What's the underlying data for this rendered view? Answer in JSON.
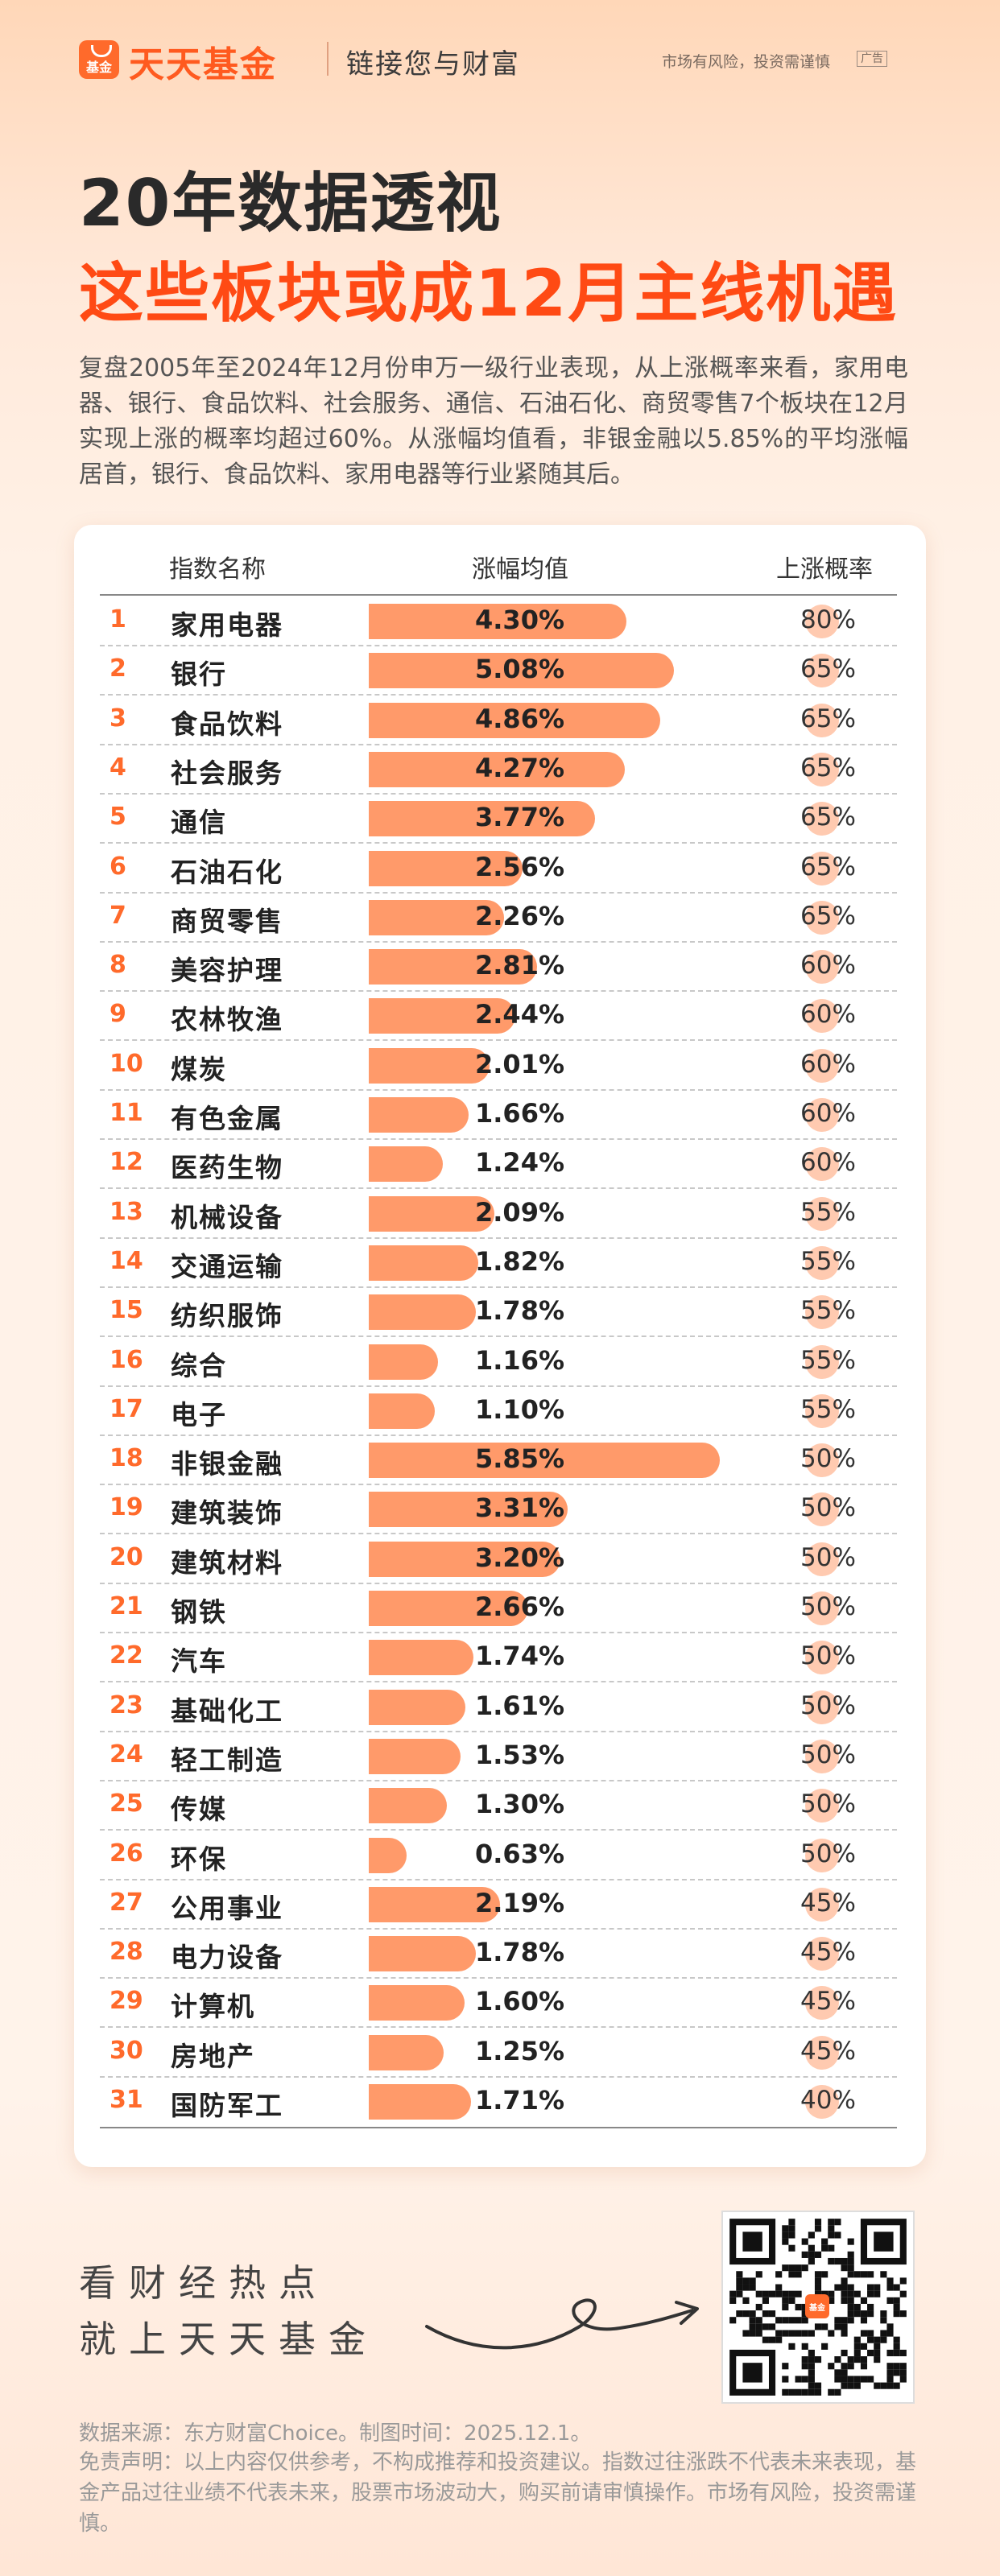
{
  "header": {
    "logo_text": "基金",
    "brand": "天天基金",
    "slogan": "链接您与财富",
    "risk_notice": "市场有风险，投资需谨慎",
    "ad_badge": "广告"
  },
  "title_line1": "20年数据透视",
  "title_line2": "这些板块或成12月主线机遇",
  "intro": "复盘2005年至2024年12月份申万一级行业表现，从上涨概率来看，家用电器、银行、食品饮料、社会服务、通信、石油石化、商贸零售7个板块在12月实现上涨的概率均超过60%。从涨幅均值看，非银金融以5.85%的平均涨幅居首，银行、食品饮料、家用电器等行业紧随其后。",
  "chart_data": {
    "type": "table",
    "columns": [
      "指数名称",
      "涨幅均值",
      "上涨概率"
    ],
    "rows": [
      {
        "rank": "1",
        "name": "家用电器",
        "avg": "4.30%",
        "avg_value": 4.3,
        "prob": "80%",
        "prob_value": 80
      },
      {
        "rank": "2",
        "name": "银行",
        "avg": "5.08%",
        "avg_value": 5.08,
        "prob": "65%",
        "prob_value": 65
      },
      {
        "rank": "3",
        "name": "食品饮料",
        "avg": "4.86%",
        "avg_value": 4.86,
        "prob": "65%",
        "prob_value": 65
      },
      {
        "rank": "4",
        "name": "社会服务",
        "avg": "4.27%",
        "avg_value": 4.27,
        "prob": "65%",
        "prob_value": 65
      },
      {
        "rank": "5",
        "name": "通信",
        "avg": "3.77%",
        "avg_value": 3.77,
        "prob": "65%",
        "prob_value": 65
      },
      {
        "rank": "6",
        "name": "石油石化",
        "avg": "2.56%",
        "avg_value": 2.56,
        "prob": "65%",
        "prob_value": 65
      },
      {
        "rank": "7",
        "name": "商贸零售",
        "avg": "2.26%",
        "avg_value": 2.26,
        "prob": "65%",
        "prob_value": 65
      },
      {
        "rank": "8",
        "name": "美容护理",
        "avg": "2.81%",
        "avg_value": 2.81,
        "prob": "60%",
        "prob_value": 60
      },
      {
        "rank": "9",
        "name": "农林牧渔",
        "avg": "2.44%",
        "avg_value": 2.44,
        "prob": "60%",
        "prob_value": 60
      },
      {
        "rank": "10",
        "name": "煤炭",
        "avg": "2.01%",
        "avg_value": 2.01,
        "prob": "60%",
        "prob_value": 60
      },
      {
        "rank": "11",
        "name": "有色金属",
        "avg": "1.66%",
        "avg_value": 1.66,
        "prob": "60%",
        "prob_value": 60
      },
      {
        "rank": "12",
        "name": "医药生物",
        "avg": "1.24%",
        "avg_value": 1.24,
        "prob": "60%",
        "prob_value": 60
      },
      {
        "rank": "13",
        "name": "机械设备",
        "avg": "2.09%",
        "avg_value": 2.09,
        "prob": "55%",
        "prob_value": 55
      },
      {
        "rank": "14",
        "name": "交通运输",
        "avg": "1.82%",
        "avg_value": 1.82,
        "prob": "55%",
        "prob_value": 55
      },
      {
        "rank": "15",
        "name": "纺织服饰",
        "avg": "1.78%",
        "avg_value": 1.78,
        "prob": "55%",
        "prob_value": 55
      },
      {
        "rank": "16",
        "name": "综合",
        "avg": "1.16%",
        "avg_value": 1.16,
        "prob": "55%",
        "prob_value": 55
      },
      {
        "rank": "17",
        "name": "电子",
        "avg": "1.10%",
        "avg_value": 1.1,
        "prob": "55%",
        "prob_value": 55
      },
      {
        "rank": "18",
        "name": "非银金融",
        "avg": "5.85%",
        "avg_value": 5.85,
        "prob": "50%",
        "prob_value": 50
      },
      {
        "rank": "19",
        "name": "建筑装饰",
        "avg": "3.31%",
        "avg_value": 3.31,
        "prob": "50%",
        "prob_value": 50
      },
      {
        "rank": "20",
        "name": "建筑材料",
        "avg": "3.20%",
        "avg_value": 3.2,
        "prob": "50%",
        "prob_value": 50
      },
      {
        "rank": "21",
        "name": "钢铁",
        "avg": "2.66%",
        "avg_value": 2.66,
        "prob": "50%",
        "prob_value": 50
      },
      {
        "rank": "22",
        "name": "汽车",
        "avg": "1.74%",
        "avg_value": 1.74,
        "prob": "50%",
        "prob_value": 50
      },
      {
        "rank": "23",
        "name": "基础化工",
        "avg": "1.61%",
        "avg_value": 1.61,
        "prob": "50%",
        "prob_value": 50
      },
      {
        "rank": "24",
        "name": "轻工制造",
        "avg": "1.53%",
        "avg_value": 1.53,
        "prob": "50%",
        "prob_value": 50
      },
      {
        "rank": "25",
        "name": "传媒",
        "avg": "1.30%",
        "avg_value": 1.3,
        "prob": "50%",
        "prob_value": 50
      },
      {
        "rank": "26",
        "name": "环保",
        "avg": "0.63%",
        "avg_value": 0.63,
        "prob": "50%",
        "prob_value": 50
      },
      {
        "rank": "27",
        "name": "公用事业",
        "avg": "2.19%",
        "avg_value": 2.19,
        "prob": "45%",
        "prob_value": 45
      },
      {
        "rank": "28",
        "name": "电力设备",
        "avg": "1.78%",
        "avg_value": 1.78,
        "prob": "45%",
        "prob_value": 45
      },
      {
        "rank": "29",
        "name": "计算机",
        "avg": "1.60%",
        "avg_value": 1.6,
        "prob": "45%",
        "prob_value": 45
      },
      {
        "rank": "30",
        "name": "房地产",
        "avg": "1.25%",
        "avg_value": 1.25,
        "prob": "45%",
        "prob_value": 45
      },
      {
        "rank": "31",
        "name": "国防军工",
        "avg": "1.71%",
        "avg_value": 1.71,
        "prob": "40%",
        "prob_value": 40
      }
    ],
    "bar_color": "#ff9a6a",
    "dot_color": "#ffcab0"
  },
  "cta_line1": "看财经热点",
  "cta_line2": "就上天天基金",
  "qr_logo_text": "基金",
  "footer_source": "数据来源：东方财富Choice。制图时间：2025.12.1。",
  "footer_disclaimer": "免责声明：以上内容仅供参考，不构成推荐和投资建议。指数过往涨跌不代表未来表现，基金产品过往业绩不代表未来，股票市场波动大，购买前请审慎操作。市场有风险，投资需谨慎。",
  "colors": {
    "brand": "#ff5a1f",
    "title_accent": "#ff4a14"
  }
}
